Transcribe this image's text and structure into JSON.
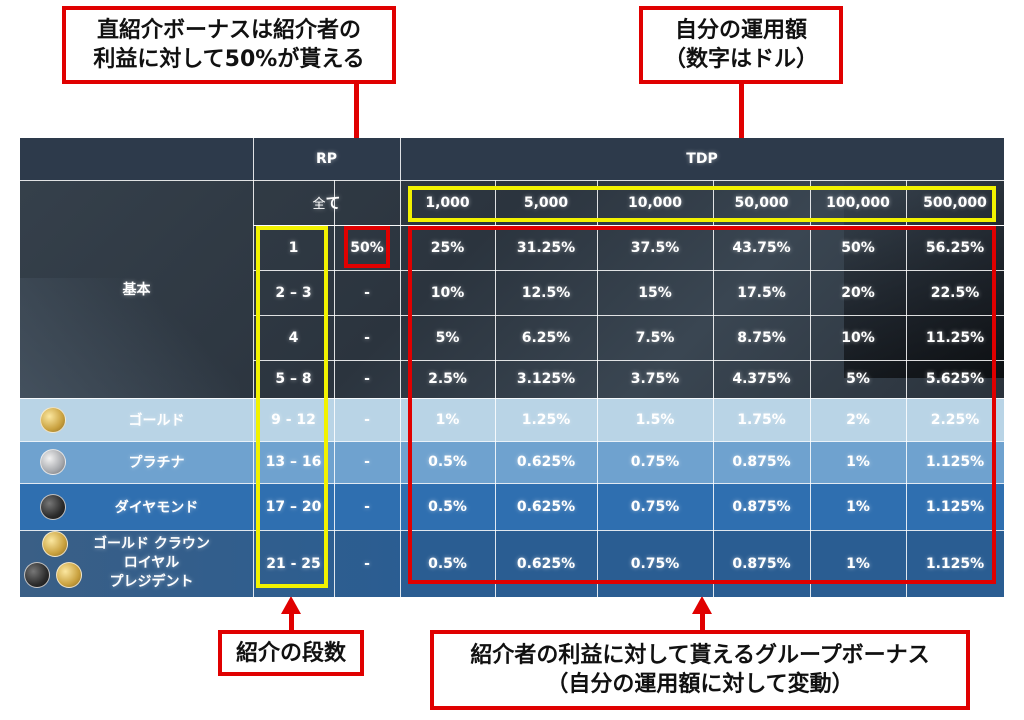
{
  "callouts": {
    "direct_bonus": [
      "直紹介ボーナスは紹介者の",
      "利益に対して50%が貰える"
    ],
    "own_amount": [
      "自分の運用額",
      "（数字はドル）"
    ],
    "tiers": [
      "紹介の段数"
    ],
    "group_bonus": [
      "紹介者の利益に対して貰えるグループボーナス",
      "（自分の運用額に対して変動）"
    ]
  },
  "table": {
    "header_rp": "RP",
    "header_tdp": "TDP",
    "all_label_kanji": "全",
    "all_label_kana": "て",
    "amounts": [
      "1,000",
      "5,000",
      "10,000",
      "50,000",
      "100,000",
      "500,000"
    ],
    "basic_label": "基本",
    "basic_rows": [
      {
        "tier": "1",
        "direct": "50%",
        "rates": [
          "25%",
          "31.25%",
          "37.5%",
          "43.75%",
          "50%",
          "56.25%"
        ]
      },
      {
        "tier": "2 – 3",
        "direct": "-",
        "rates": [
          "10%",
          "12.5%",
          "15%",
          "17.5%",
          "20%",
          "22.5%"
        ]
      },
      {
        "tier": "4",
        "direct": "-",
        "rates": [
          "5%",
          "6.25%",
          "7.5%",
          "8.75%",
          "10%",
          "11.25%"
        ]
      },
      {
        "tier": "5 – 8",
        "direct": "-",
        "rates": [
          "2.5%",
          "3.125%",
          "3.75%",
          "4.375%",
          "5%",
          "5.625%"
        ]
      }
    ],
    "rank_rows": [
      {
        "name": "ゴールド",
        "tier": "9 - 12",
        "direct": "-",
        "rates": [
          "1%",
          "1.25%",
          "1.5%",
          "1.75%",
          "2%",
          "2.25%"
        ],
        "bg": "#b9d4e6",
        "coin": "gold"
      },
      {
        "name": "プラチナ",
        "tier": "13 – 16",
        "direct": "-",
        "rates": [
          "0.5%",
          "0.625%",
          "0.75%",
          "0.875%",
          "1%",
          "1.125%"
        ],
        "bg": "#6fa2cf",
        "coin": "plat"
      },
      {
        "name": "ダイヤモンド",
        "tier": "17 – 20",
        "direct": "-",
        "rates": [
          "0.5%",
          "0.625%",
          "0.75%",
          "0.875%",
          "1%",
          "1.125%"
        ],
        "bg": "#2f6fb0",
        "coin": "dark"
      }
    ],
    "last_row": {
      "names": [
        "ゴールド クラウン",
        "ロイヤル",
        "プレジデント"
      ],
      "tier": "21 - 25",
      "direct": "-",
      "rates": [
        "0.5%",
        "0.625%",
        "0.75%",
        "0.875%",
        "1%",
        "1.125%"
      ],
      "bg": "#2a5d92"
    }
  }
}
